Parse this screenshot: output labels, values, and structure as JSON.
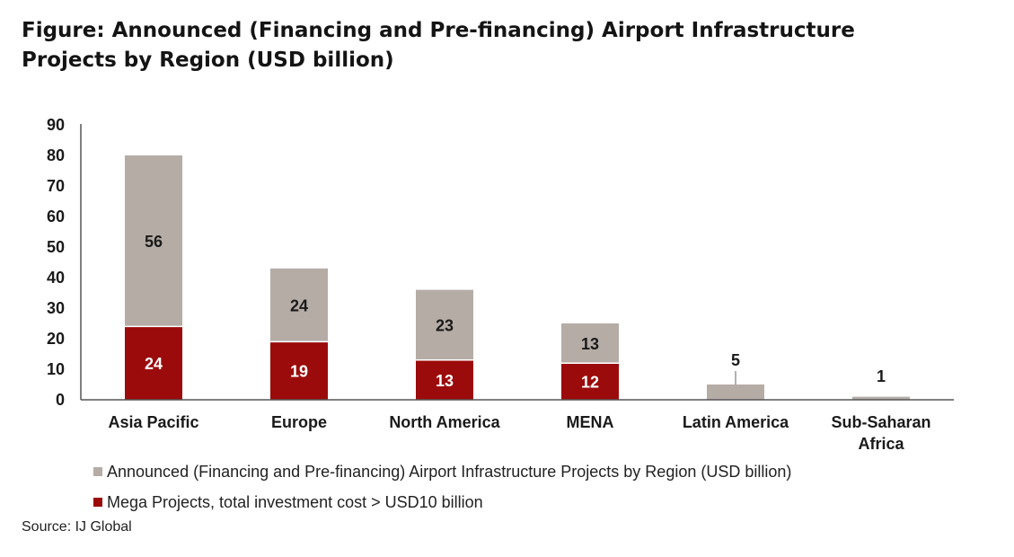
{
  "figure": {
    "label": "Figure",
    "title": "Announced (Financing and Pre-financing) Airport Infrastructure Projects by Region (USD billion)"
  },
  "chart_data": {
    "type": "bar",
    "stacked": true,
    "categories": [
      "Asia Pacific",
      "Europe",
      "North America",
      "MENA",
      "Latin America",
      "Sub-Saharan Africa"
    ],
    "category_labels": [
      [
        "Asia Pacific"
      ],
      [
        "Europe"
      ],
      [
        "North America"
      ],
      [
        "MENA"
      ],
      [
        "Latin America"
      ],
      [
        "Sub-Saharan",
        "Africa"
      ]
    ],
    "series": [
      {
        "name": "Mega Projects, total investment cost > USD10 billion",
        "color": "#9b0b0b",
        "values": [
          24,
          19,
          13,
          12,
          0,
          0
        ]
      },
      {
        "name": "Announced (Financing and Pre-financing) Airport Infrastructure Projects by Region (USD billion)",
        "color": "#b5aca6",
        "values": [
          56,
          24,
          23,
          13,
          5,
          1
        ]
      }
    ],
    "ylim": [
      0,
      90
    ],
    "yticks": [
      0,
      10,
      20,
      30,
      40,
      50,
      60,
      70,
      80,
      90
    ],
    "grid": false,
    "legend_position": "bottom"
  },
  "legend": [
    {
      "label": "Announced (Financing and Pre-financing) Airport Infrastructure Projects by Region (USD billion)",
      "color": "#b5aca6"
    },
    {
      "label": "Mega Projects, total investment cost > USD10 billion",
      "color": "#9b0b0b"
    }
  ],
  "source": "Source: IJ Global"
}
